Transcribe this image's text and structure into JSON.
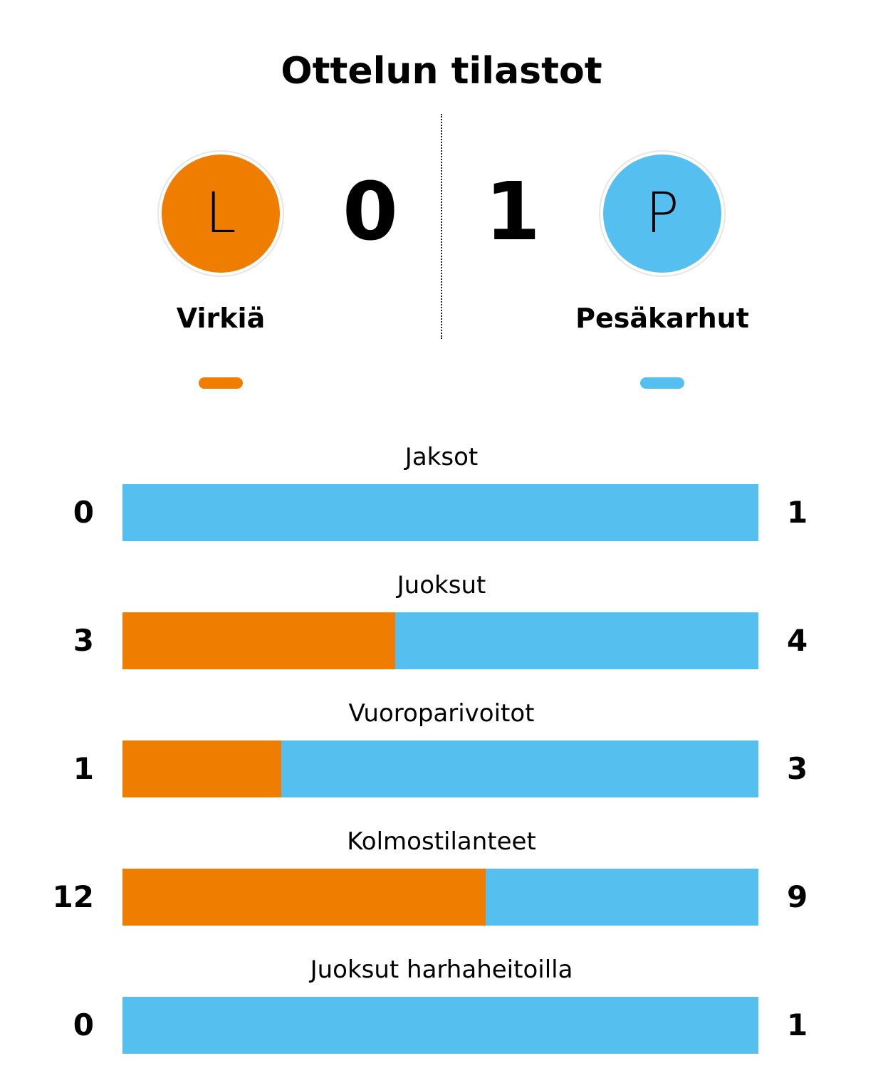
{
  "title": "Ottelun tilastot",
  "colors": {
    "home": "#EF7D00",
    "away": "#55C0EF",
    "text": "#000000"
  },
  "home": {
    "logo_letter": "L",
    "score": "0",
    "name": "Virkiä"
  },
  "away": {
    "logo_letter": "P",
    "score": "1",
    "name": "Pesäkarhut"
  },
  "stats": [
    {
      "label": "Jaksot",
      "home": 0,
      "away": 1
    },
    {
      "label": "Juoksut",
      "home": 3,
      "away": 4
    },
    {
      "label": "Vuoroparivoitot",
      "home": 1,
      "away": 3
    },
    {
      "label": "Kolmostilanteet",
      "home": 12,
      "away": 9
    },
    {
      "label": "Juoksut harhaheitoilla",
      "home": 0,
      "away": 1
    }
  ]
}
